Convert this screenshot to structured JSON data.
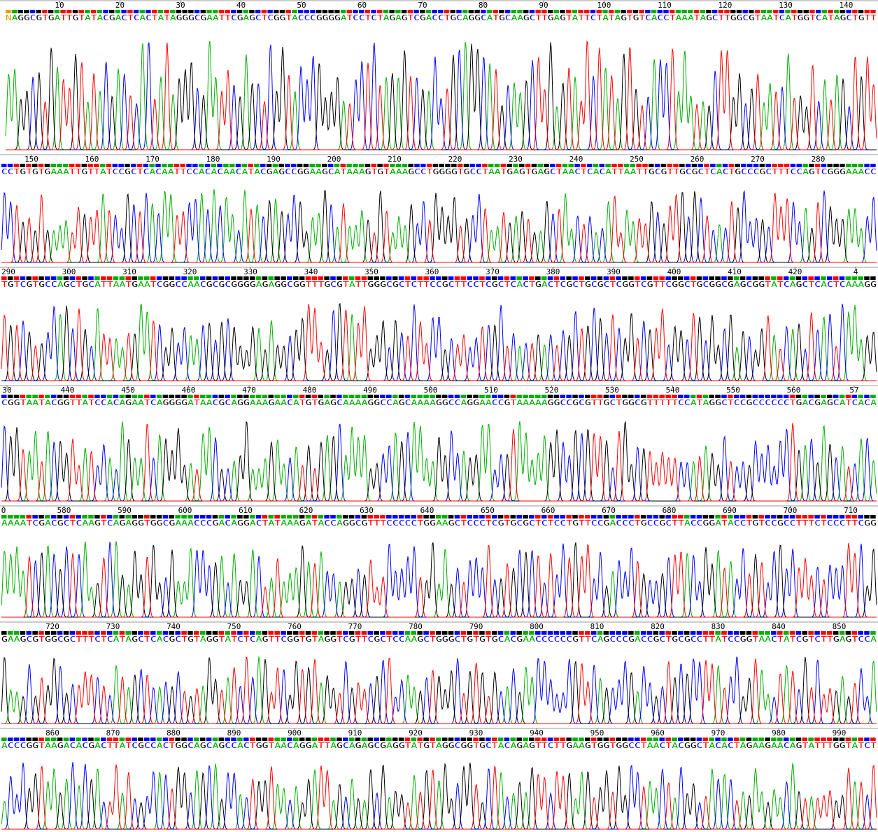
{
  "rows": [
    {
      "ticks": [
        "10",
        "20",
        "30",
        "40",
        "50",
        "60",
        "70",
        "80",
        "90",
        "100",
        "110",
        "120",
        "130",
        "140"
      ],
      "sequence": "NAGGCGTGATTGTATACGACTCACTATAGGGCGAATTCGAGCTCGGTACCCGGGGATCCTCTAGAGTCGACCTGCAGGCATGCAAGCTTGAGTATTCTATAGTGTCACCTAAATAGCTTGGCGTAATCATGGTCATAGCTGTT"
    },
    {
      "ticks": [
        "150",
        "160",
        "170",
        "180",
        "190",
        "200",
        "210",
        "220",
        "230",
        "240",
        "250",
        "260",
        "270",
        "280"
      ],
      "sequence": "CCTGTGTGAAATTGTTATCCGCTCACAATTCCACACAACATACGAGCCGGAAGCATAAAGTGTAAAGCCTGGGGTGCCTAATGAGTGAGCTAACTCACATTAATTGCGTTGCGCTCACTGCCCGCTTTCCAGTCGGGAAACC"
    },
    {
      "ticks": [
        "290",
        "300",
        "310",
        "320",
        "330",
        "340",
        "350",
        "360",
        "370",
        "380",
        "390",
        "400",
        "410",
        "420",
        "4"
      ],
      "sequence": "TGTCGTGCCAGCTGCATTAATGAATCGGCCAACGCGCGGGGAGAGGCGGTTTGCGTATTGGGCGCTCTTCCGCTTCCTCGCTCACTGACTCGCTGCGCTCGGTCGTTCGGCTGCGGCGAGCGGTATCAGCTCACTCAAAGG"
    },
    {
      "ticks": [
        "30",
        "440",
        "450",
        "460",
        "470",
        "480",
        "490",
        "500",
        "510",
        "520",
        "530",
        "540",
        "550",
        "560",
        "57"
      ],
      "sequence": "CGGTAATACGGTTATCCACAGAATCAGGGGATAACGCAGGAAAGAACATGTGAGCAAAAGGCCAGCAAAAGGCCAGGAACCGTAAAAAGGCCGCGTTGCTGGCGTTTTTCCATAGGCTCCGCCCCCCTGACGAGCATCACA"
    },
    {
      "ticks": [
        "0",
        "580",
        "590",
        "600",
        "610",
        "620",
        "630",
        "640",
        "650",
        "660",
        "670",
        "680",
        "690",
        "700",
        "710"
      ],
      "sequence": "AAAATCGACGCTCAAGTCAGAGGTGGCGAAACCCGACAGGACTATAAAGATACCAGGCGTTTCCCCCTGGAAGCTCCCTCGTGCGCTCTCCTGTTCCGACCCTGCCGCTTACCGGATACCTGTCCGCCTTTCTCCCTTCGG"
    },
    {
      "ticks": [
        "720",
        "730",
        "740",
        "750",
        "760",
        "770",
        "780",
        "790",
        "800",
        "810",
        "820",
        "830",
        "840",
        "850"
      ],
      "sequence": "GAAGCGTGGCGCTTTCTCATAGCTCACGCTGTAGGTATCTCAGTTCGGTGTAGGTCGTTCGCTCCAAGCTGGGCTGTGTGCACGAACCCCCCGTTCAGCCCGACCGCTGCGCCTTATCCGGTAACTATCGTCTTGAGTCCA"
    },
    {
      "ticks": [
        "860",
        "870",
        "880",
        "890",
        "900",
        "910",
        "920",
        "930",
        "940",
        "950",
        "960",
        "970",
        "980",
        "990"
      ],
      "sequence": "ACCCGGTAAGACACGACTTATCGCCACTGGCAGCAGCCACTGGTAACAGGATTAGCAGAGCGAGGTATGTAGGCGGTGCTACAGAGTTCTTGAAGTGGTGGCCTAACTACGGCTACACTAGAAGAACAGTATTTGGTATCT"
    }
  ]
}
